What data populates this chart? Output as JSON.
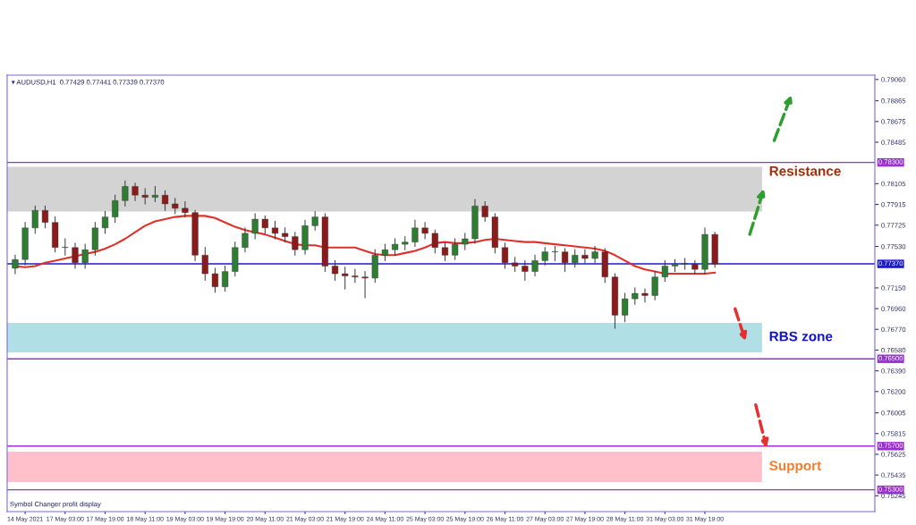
{
  "chart_data": {
    "type": "candlestick",
    "title": "▾ AUDUSD,H1  0.77429 0.77441 0.77339 0.77370",
    "categories": [
      null,
      "14 May 2021",
      null,
      null,
      null,
      "17 May 03:00",
      null,
      null,
      null,
      "17 May 19:00",
      null,
      null,
      null,
      "18 May 11:00",
      null,
      null,
      null,
      "19 May 03:00",
      null,
      null,
      null,
      "19 May 19:00",
      null,
      null,
      null,
      "20 May 11:00",
      null,
      null,
      null,
      "21 May 03:00",
      null,
      null,
      null,
      "21 May 19:00",
      null,
      null,
      null,
      "24 May 11:00",
      null,
      null,
      null,
      "25 May 03:00",
      null,
      null,
      null,
      "25 May 19:00",
      null,
      null,
      null,
      "26 May 11:00",
      null,
      null,
      null,
      "27 May 03:00",
      null,
      null,
      null,
      "27 May 19:00",
      null,
      null,
      null,
      "28 May 11:00",
      null,
      null,
      null,
      "31 May 03:00",
      null,
      null,
      null,
      "31 May 19:00",
      null
    ],
    "ohlc": [
      [
        0.7733,
        0.7745,
        0.7728,
        0.7741
      ],
      [
        0.7741,
        0.7775,
        0.7736,
        0.777
      ],
      [
        0.777,
        0.779,
        0.7765,
        0.7786
      ],
      [
        0.7786,
        0.779,
        0.777,
        0.7775
      ],
      [
        0.7775,
        0.778,
        0.7748,
        0.7752
      ],
      [
        0.7752,
        0.776,
        0.7745,
        0.7752
      ],
      [
        0.7752,
        0.7756,
        0.7733,
        0.7738
      ],
      [
        0.7738,
        0.7755,
        0.7733,
        0.775
      ],
      [
        0.775,
        0.7775,
        0.7745,
        0.777
      ],
      [
        0.777,
        0.7785,
        0.7765,
        0.778
      ],
      [
        0.778,
        0.78,
        0.7775,
        0.7795
      ],
      [
        0.7795,
        0.7813,
        0.779,
        0.7808
      ],
      [
        0.7808,
        0.7811,
        0.7795,
        0.78
      ],
      [
        0.78,
        0.7806,
        0.7792,
        0.7798
      ],
      [
        0.7798,
        0.7808,
        0.7794,
        0.78
      ],
      [
        0.78,
        0.7804,
        0.7786,
        0.7792
      ],
      [
        0.7792,
        0.7797,
        0.7783,
        0.7788
      ],
      [
        0.7788,
        0.7794,
        0.778,
        0.7784
      ],
      [
        0.7784,
        0.7786,
        0.774,
        0.7745
      ],
      [
        0.7745,
        0.7752,
        0.7722,
        0.7728
      ],
      [
        0.7728,
        0.7733,
        0.7711,
        0.7716
      ],
      [
        0.7716,
        0.7735,
        0.7712,
        0.773
      ],
      [
        0.773,
        0.7757,
        0.7726,
        0.7752
      ],
      [
        0.7752,
        0.777,
        0.7748,
        0.7765
      ],
      [
        0.7765,
        0.7783,
        0.776,
        0.7778
      ],
      [
        0.7778,
        0.7781,
        0.7765,
        0.777
      ],
      [
        0.777,
        0.7776,
        0.776,
        0.7765
      ],
      [
        0.7765,
        0.777,
        0.7757,
        0.7762
      ],
      [
        0.7762,
        0.7766,
        0.7745,
        0.775
      ],
      [
        0.775,
        0.7777,
        0.7746,
        0.7772
      ],
      [
        0.7772,
        0.7785,
        0.7768,
        0.778
      ],
      [
        0.778,
        0.7783,
        0.773,
        0.7735
      ],
      [
        0.7735,
        0.774,
        0.7722,
        0.7728
      ],
      [
        0.7728,
        0.7734,
        0.7714,
        0.7726
      ],
      [
        0.7726,
        0.7732,
        0.772,
        0.7725
      ],
      [
        0.7725,
        0.773,
        0.7706,
        0.7724
      ],
      [
        0.7724,
        0.775,
        0.772,
        0.7745
      ],
      [
        0.7745,
        0.7755,
        0.774,
        0.775
      ],
      [
        0.775,
        0.776,
        0.7745,
        0.7755
      ],
      [
        0.7755,
        0.7762,
        0.775,
        0.7757
      ],
      [
        0.7757,
        0.7777,
        0.7753,
        0.777
      ],
      [
        0.777,
        0.7775,
        0.776,
        0.7765
      ],
      [
        0.7765,
        0.7768,
        0.7747,
        0.7752
      ],
      [
        0.7752,
        0.7756,
        0.774,
        0.7745
      ],
      [
        0.7745,
        0.776,
        0.7741,
        0.7755
      ],
      [
        0.7755,
        0.7765,
        0.775,
        0.776
      ],
      [
        0.776,
        0.7796,
        0.7756,
        0.779
      ],
      [
        0.779,
        0.7794,
        0.7776,
        0.778
      ],
      [
        0.778,
        0.7783,
        0.7747,
        0.7752
      ],
      [
        0.7752,
        0.7756,
        0.7733,
        0.7738
      ],
      [
        0.7738,
        0.7743,
        0.773,
        0.7735
      ],
      [
        0.7735,
        0.774,
        0.7722,
        0.773
      ],
      [
        0.773,
        0.7745,
        0.7726,
        0.774
      ],
      [
        0.774,
        0.7752,
        0.7736,
        0.7748
      ],
      [
        0.7748,
        0.7753,
        0.774,
        0.7748
      ],
      [
        0.7748,
        0.7751,
        0.773,
        0.7738
      ],
      [
        0.7738,
        0.775,
        0.7734,
        0.7745
      ],
      [
        0.7745,
        0.775,
        0.7738,
        0.7742
      ],
      [
        0.7742,
        0.7753,
        0.7738,
        0.7748
      ],
      [
        0.7748,
        0.7751,
        0.772,
        0.7725
      ],
      [
        0.7725,
        0.7728,
        0.7678,
        0.769
      ],
      [
        0.769,
        0.771,
        0.7684,
        0.7705
      ],
      [
        0.7705,
        0.7715,
        0.77,
        0.771
      ],
      [
        0.771,
        0.7714,
        0.7702,
        0.7708
      ],
      [
        0.7708,
        0.773,
        0.7704,
        0.7725
      ],
      [
        0.7725,
        0.774,
        0.7721,
        0.7735
      ],
      [
        0.7735,
        0.7741,
        0.773,
        0.7737
      ],
      [
        0.7737,
        0.7742,
        0.7732,
        0.7737
      ],
      [
        0.7737,
        0.774,
        0.7728,
        0.7732
      ],
      [
        0.7732,
        0.777,
        0.7728,
        0.7764
      ],
      [
        0.7764,
        0.7766,
        0.77339,
        0.7737
      ]
    ],
    "series": [
      {
        "type": "line",
        "color": "#e0302a",
        "values": [
          0.7735,
          0.7734,
          0.7735,
          0.7738,
          0.774,
          0.7742,
          0.7744,
          0.7746,
          0.7748,
          0.7751,
          0.7755,
          0.776,
          0.7766,
          0.7772,
          0.7776,
          0.7778,
          0.778,
          0.7781,
          0.7781,
          0.7781,
          0.7779,
          0.7775,
          0.7771,
          0.7768,
          0.7766,
          0.7764,
          0.7761,
          0.7758,
          0.7755,
          0.7754,
          0.7754,
          0.7752,
          0.7752,
          0.7752,
          0.7752,
          0.7749,
          0.7746,
          0.7745,
          0.7745,
          0.7747,
          0.7749,
          0.7752,
          0.7756,
          0.7757,
          0.7756,
          0.7756,
          0.7757,
          0.7759,
          0.776,
          0.7759,
          0.7758,
          0.7757,
          0.7757,
          0.7756,
          0.7755,
          0.7754,
          0.7753,
          0.7752,
          0.7751,
          0.7749,
          0.7745,
          0.774,
          0.7735,
          0.7732,
          0.773,
          0.7728,
          0.7728,
          0.7728,
          0.7728,
          0.7728,
          0.7729
        ]
      }
    ],
    "ylim": [
      0.751,
      0.791
    ],
    "yticks": [
      {
        "value": 0.7906,
        "label": "0.79060"
      },
      0.78865,
      0.78675,
      0.78485,
      0.78105,
      0.77915,
      0.77725,
      {
        "value": 0.7753,
        "label": "0.77530"
      },
      {
        "value": 0.7715,
        "label": "0.77150"
      },
      {
        "value": 0.7696,
        "label": "0.76960"
      },
      {
        "value": 0.7677,
        "label": "0.76770"
      },
      {
        "value": 0.7658,
        "label": "0.76580"
      },
      {
        "value": 0.7639,
        "label": "0.76390"
      },
      {
        "value": 0.762,
        "label": "0.76200"
      },
      0.76005,
      0.75815,
      0.75625,
      0.75435,
      0.75245
    ],
    "ref_lines": [
      {
        "axis": "y",
        "value": 0.783,
        "label": "0.78300",
        "color": "#9b30d0"
      },
      {
        "axis": "y",
        "value": 0.7737,
        "label": "0.77370",
        "color": "#1a1ad0"
      },
      {
        "axis": "y",
        "value": 0.765,
        "label": "0.76500",
        "color": "#9b30d0"
      },
      {
        "axis": "y",
        "value": 0.757,
        "label": "0.75700",
        "color": "#9b30d0"
      },
      {
        "axis": "y",
        "value": 0.753,
        "label": "0.75300",
        "color": "#9b30d0"
      }
    ],
    "bands": [
      {
        "axis": "y",
        "from": 0.7785,
        "to": 0.7826,
        "label": "Resistance",
        "color": "#d3d3d3"
      },
      {
        "axis": "y",
        "from": 0.7656,
        "to": 0.7683,
        "label": "RBS zone",
        "color": "#b0e0e6"
      },
      {
        "axis": "y",
        "from": 0.7537,
        "to": 0.7565,
        "label": "Support",
        "color": "#ffc0cb"
      }
    ],
    "annotations": [
      "Symbol Changer profit display"
    ],
    "grid": false,
    "legend": false
  }
}
